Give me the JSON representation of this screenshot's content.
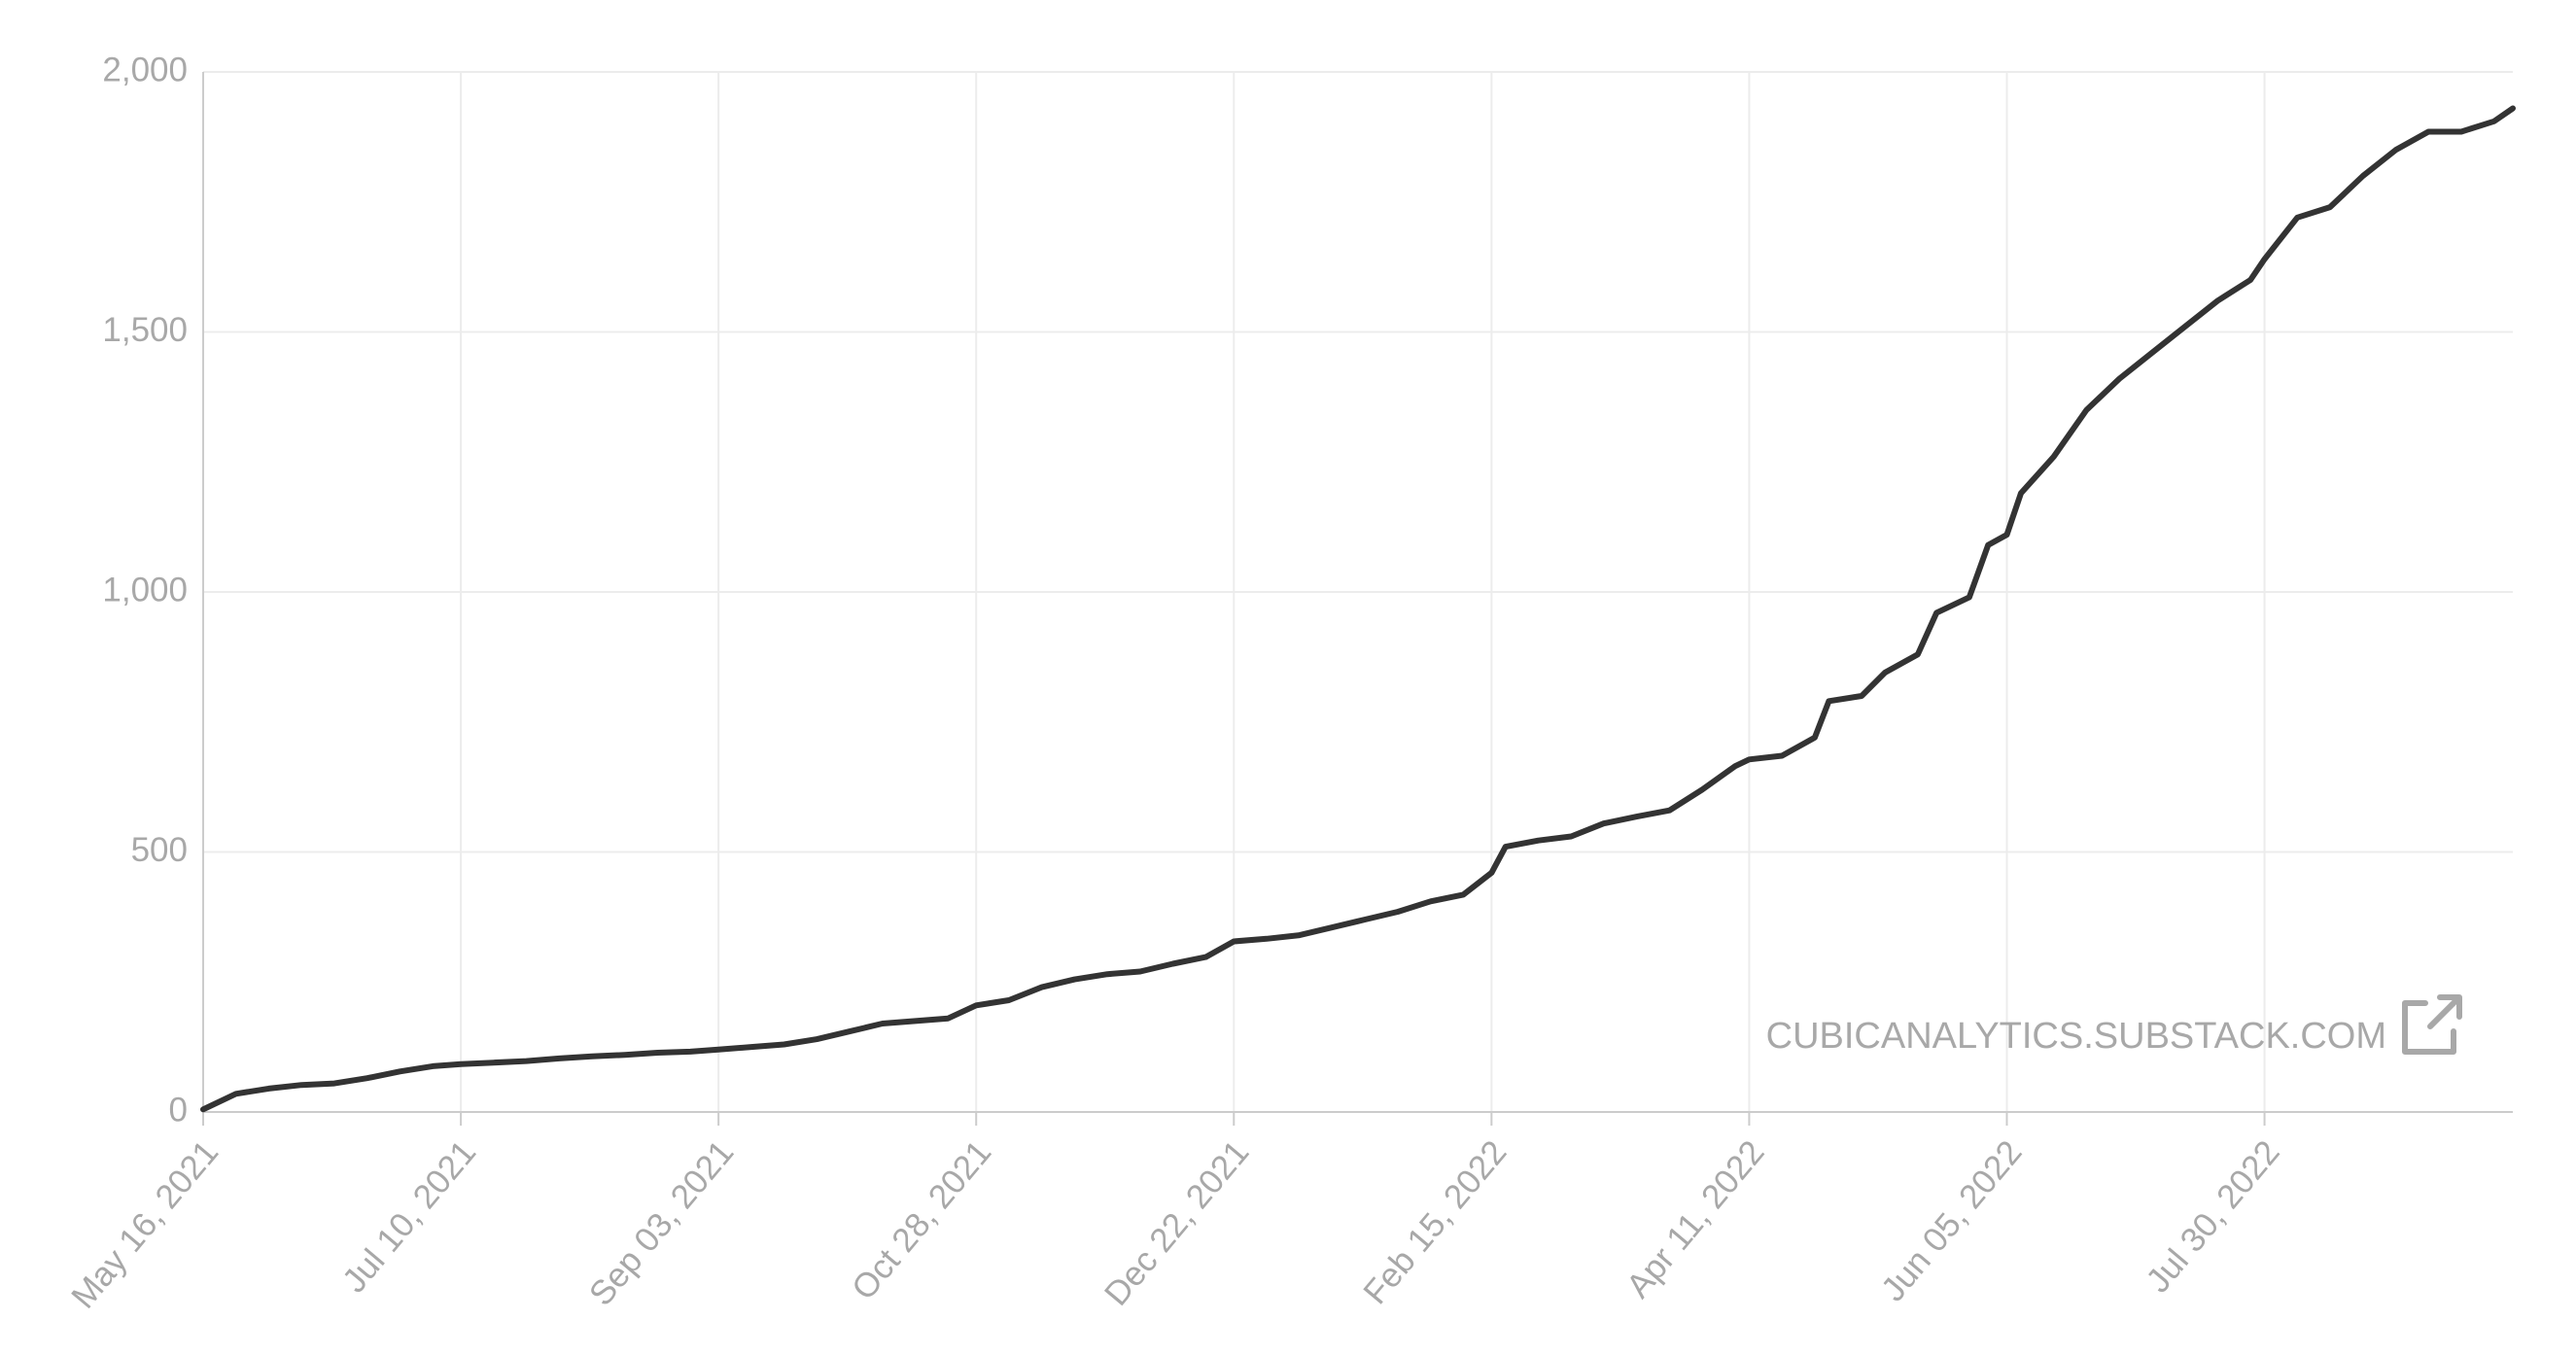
{
  "chart_data": {
    "type": "line",
    "x": [
      "2021-05-16",
      "2021-05-23",
      "2021-05-30",
      "2021-06-06",
      "2021-06-13",
      "2021-06-20",
      "2021-06-27",
      "2021-07-04",
      "2021-07-10",
      "2021-07-17",
      "2021-07-24",
      "2021-07-31",
      "2021-08-07",
      "2021-08-14",
      "2021-08-21",
      "2021-08-28",
      "2021-09-03",
      "2021-09-10",
      "2021-09-17",
      "2021-09-24",
      "2021-10-01",
      "2021-10-08",
      "2021-10-15",
      "2021-10-22",
      "2021-10-28",
      "2021-11-04",
      "2021-11-11",
      "2021-11-18",
      "2021-11-25",
      "2021-12-02",
      "2021-12-09",
      "2021-12-16",
      "2021-12-22",
      "2021-12-29",
      "2022-01-05",
      "2022-01-12",
      "2022-01-19",
      "2022-01-26",
      "2022-02-02",
      "2022-02-09",
      "2022-02-15",
      "2022-02-18",
      "2022-02-25",
      "2022-03-04",
      "2022-03-11",
      "2022-03-18",
      "2022-03-25",
      "2022-04-01",
      "2022-04-08",
      "2022-04-11",
      "2022-04-18",
      "2022-04-25",
      "2022-04-28",
      "2022-05-05",
      "2022-05-10",
      "2022-05-17",
      "2022-05-21",
      "2022-05-28",
      "2022-06-01",
      "2022-06-05",
      "2022-06-08",
      "2022-06-15",
      "2022-06-22",
      "2022-06-29",
      "2022-07-06",
      "2022-07-13",
      "2022-07-20",
      "2022-07-27",
      "2022-07-30",
      "2022-08-06",
      "2022-08-13",
      "2022-08-20",
      "2022-08-27",
      "2022-09-03",
      "2022-09-10",
      "2022-09-17",
      "2022-09-21"
    ],
    "series": [
      {
        "color": "#333333",
        "values": [
          5,
          35,
          45,
          52,
          55,
          65,
          78,
          88,
          92,
          95,
          98,
          103,
          107,
          110,
          114,
          116,
          120,
          125,
          130,
          140,
          155,
          170,
          175,
          180,
          205,
          215,
          240,
          255,
          265,
          270,
          285,
          298,
          328,
          333,
          340,
          355,
          370,
          385,
          405,
          418,
          460,
          510,
          522,
          530,
          555,
          568,
          580,
          620,
          665,
          678,
          685,
          720,
          790,
          800,
          845,
          880,
          960,
          990,
          1090,
          1110,
          1190,
          1260,
          1350,
          1410,
          1460,
          1510,
          1560,
          1600,
          1640,
          1720,
          1740,
          1800,
          1850,
          1885,
          1885,
          1905,
          1930
        ]
      }
    ],
    "xlim": [
      "2021-05-16",
      "2022-09-21"
    ],
    "xticks": [
      {
        "value": "2021-05-16",
        "label": "May 16, 2021"
      },
      {
        "value": "2021-07-10",
        "label": "Jul 10, 2021"
      },
      {
        "value": "2021-09-03",
        "label": "Sep 03, 2021"
      },
      {
        "value": "2021-10-28",
        "label": "Oct 28, 2021"
      },
      {
        "value": "2021-12-22",
        "label": "Dec 22, 2021"
      },
      {
        "value": "2022-02-15",
        "label": "Feb 15, 2022"
      },
      {
        "value": "2022-04-11",
        "label": "Apr 11, 2022"
      },
      {
        "value": "2022-06-05",
        "label": "Jun 05, 2022"
      },
      {
        "value": "2022-07-30",
        "label": "Jul 30, 2022"
      }
    ],
    "ylim": [
      0,
      2000
    ],
    "yticks": [
      0,
      {
        "value": 500,
        "label": "500"
      },
      {
        "value": 1000,
        "label": "1,000"
      },
      {
        "value": 1500,
        "label": "1,500"
      },
      {
        "value": 2000,
        "label": "2,000"
      }
    ],
    "grid": true,
    "annotation": "CUBICANALYTICS.SUBSTACK.COM"
  }
}
